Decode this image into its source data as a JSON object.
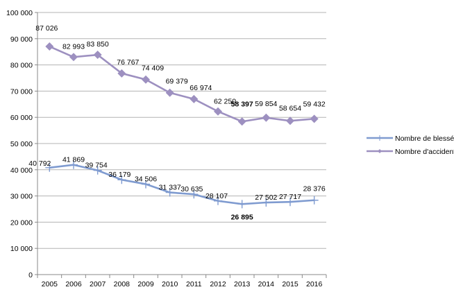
{
  "chart_data": {
    "type": "line",
    "title": "",
    "xlabel": "",
    "ylabel": "",
    "ylim": [
      0,
      100000
    ],
    "yticks": [
      0,
      10000,
      20000,
      30000,
      40000,
      50000,
      60000,
      70000,
      80000,
      90000,
      100000
    ],
    "ytick_labels": [
      "0",
      "10 000",
      "20 000",
      "30 000",
      "40 000",
      "50 000",
      "60 000",
      "70 000",
      "80 000",
      "90 000",
      "100 000"
    ],
    "grid": true,
    "legend_position": "right",
    "categories": [
      "2005",
      "2006",
      "2007",
      "2008",
      "2009",
      "2010",
      "2011",
      "2012",
      "2013",
      "2014",
      "2015",
      "2016"
    ],
    "series": [
      {
        "name": "Nombre de blessés hospitalisés",
        "color": "#7f9bd0",
        "marker": "plus",
        "values": [
          40792,
          41869,
          39754,
          36179,
          34506,
          31337,
          30635,
          28107,
          26895,
          27502,
          27717,
          28376
        ],
        "labels": [
          "40 792",
          "41 869",
          "39 754",
          "36 179",
          "34 506",
          "31 337",
          "30 635",
          "28 107",
          "26 895",
          "27 502",
          "27 717",
          "28 376"
        ]
      },
      {
        "name": "Nombre d'accidents",
        "color": "#9d90c0",
        "marker": "diamond",
        "values": [
          87026,
          82993,
          83850,
          76767,
          74409,
          69379,
          66974,
          62250,
          58397,
          59854,
          58654,
          59432
        ],
        "labels": [
          "87 026",
          "82 993",
          "83 850",
          "76 767",
          "74 409",
          "69 379",
          "66 974",
          "62 250",
          "58 397",
          "59 854",
          "58 654",
          "59 432"
        ]
      }
    ],
    "highlighted_minimum_year": "2013"
  }
}
